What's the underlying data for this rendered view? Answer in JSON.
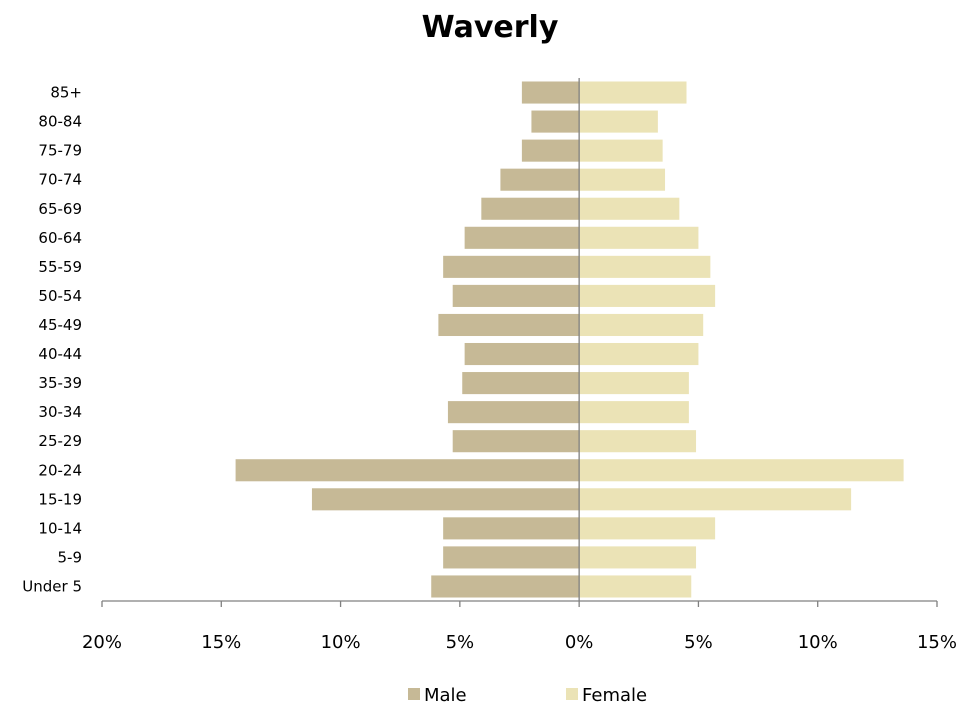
{
  "chart_data": {
    "type": "bar",
    "orientation": "horizontal",
    "title": "Waverly",
    "categories": [
      "Under 5",
      "5-9",
      "10-14",
      "15-19",
      "20-24",
      "25-29",
      "30-34",
      "35-39",
      "40-44",
      "45-49",
      "50-54",
      "55-59",
      "60-64",
      "65-69",
      "70-74",
      "75-79",
      "80-84",
      "85+"
    ],
    "series": [
      {
        "name": "Male",
        "color": "#c6b996",
        "values": [
          -6.2,
          -5.7,
          -5.7,
          -11.2,
          -14.4,
          -5.3,
          -5.5,
          -4.9,
          -4.8,
          -5.9,
          -5.3,
          -5.7,
          -4.8,
          -4.1,
          -3.3,
          -2.4,
          -2.0,
          -2.4
        ]
      },
      {
        "name": "Female",
        "color": "#ebe3b6",
        "values": [
          4.7,
          4.9,
          5.7,
          11.4,
          13.6,
          4.9,
          4.6,
          4.6,
          5.0,
          5.2,
          5.7,
          5.5,
          5.0,
          4.2,
          3.6,
          3.5,
          3.3,
          4.5
        ]
      }
    ],
    "xlim": [
      -20,
      15
    ],
    "x_ticks": [
      -20,
      -15,
      -10,
      -5,
      0,
      5,
      10,
      15
    ],
    "x_tick_labels": [
      "20%",
      "15%",
      "10%",
      "5%",
      "0%",
      "5%",
      "10%",
      "15%"
    ],
    "legend_position": "bottom",
    "grid": false
  }
}
